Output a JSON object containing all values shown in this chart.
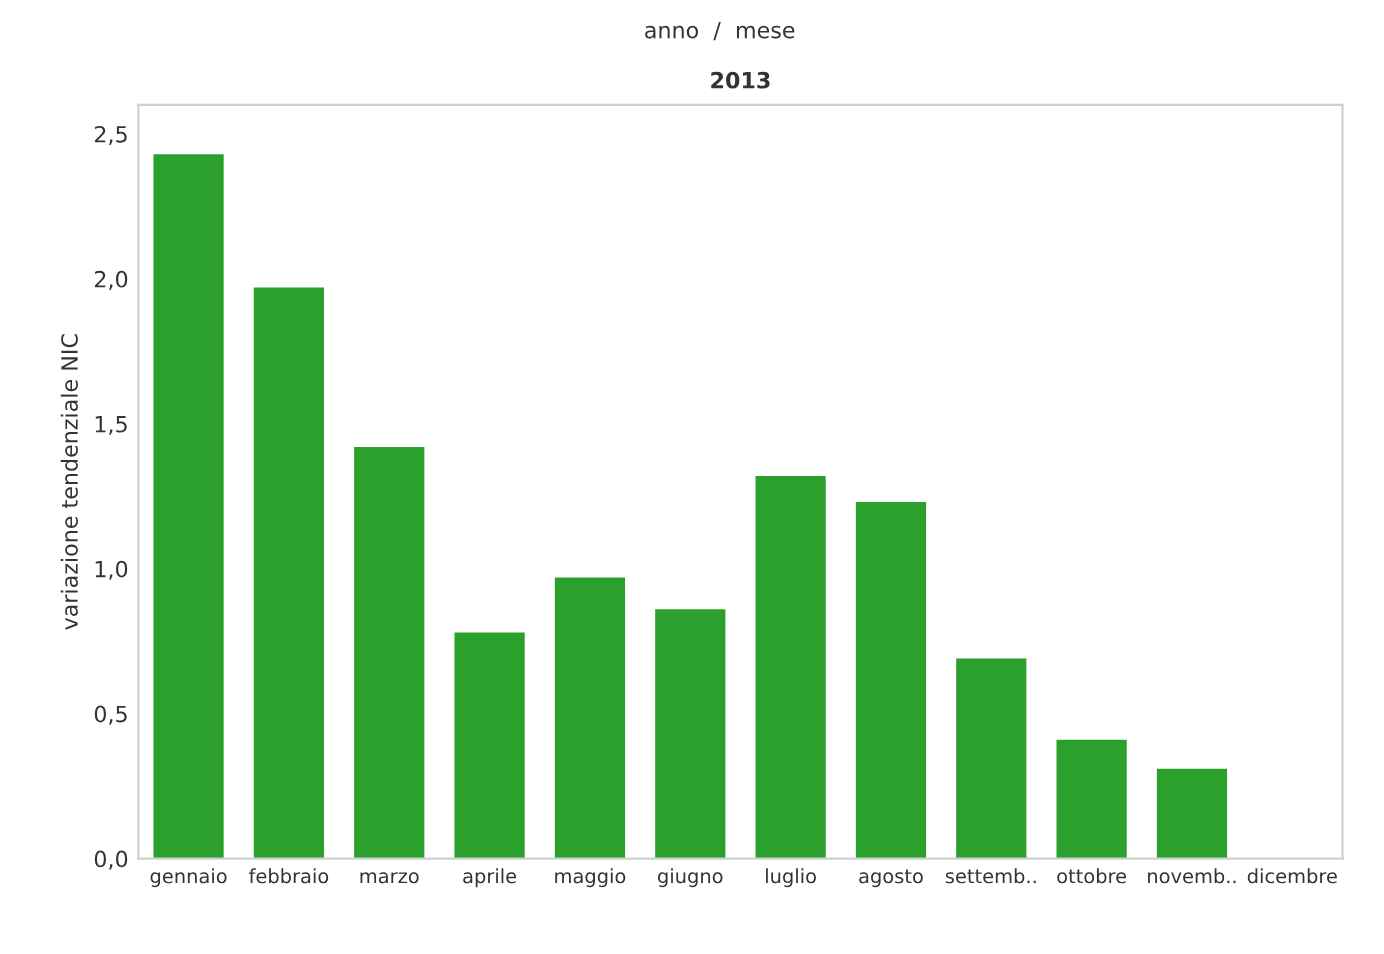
{
  "chart_data": {
    "type": "bar",
    "title": "anno  /  mese",
    "subtitle": "2013",
    "ylabel": "variazione tendenziale NIC",
    "categories": [
      "gennaio",
      "febbraio",
      "marzo",
      "aprile",
      "maggio",
      "giugno",
      "luglio",
      "agosto",
      "settemb..",
      "ottobre",
      "novemb..",
      "dicembre"
    ],
    "values": [
      2.43,
      1.97,
      1.42,
      0.78,
      0.97,
      0.86,
      1.32,
      1.23,
      0.69,
      0.41,
      0.31,
      null
    ],
    "color": "#2ca02c",
    "ylim": [
      0,
      2.6
    ],
    "yticks": [
      {
        "value": 0,
        "label": "0,0"
      },
      {
        "value": 0.5,
        "label": "0,5"
      },
      {
        "value": 1.0,
        "label": "1,0"
      },
      {
        "value": 1.5,
        "label": "1,5"
      },
      {
        "value": 2.0,
        "label": "2,0"
      },
      {
        "value": 2.5,
        "label": "2,5"
      }
    ],
    "grid": false
  }
}
